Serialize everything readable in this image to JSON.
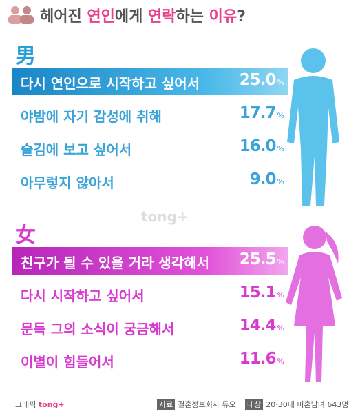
{
  "header": {
    "title_parts": [
      "헤어진 ",
      "연인",
      "에게 ",
      "연락",
      "하는 ",
      "이유",
      "?"
    ]
  },
  "sections": [
    {
      "heading": "男",
      "items": [
        {
          "label": "다시 연인으로 시작하고 싶어서",
          "figure": "25.0",
          "unit": "%"
        },
        {
          "label": "야밤에 자기 감성에 취해",
          "figure": "17.7",
          "unit": "%"
        },
        {
          "label": "술김에 보고 싶어서",
          "figure": "16.0",
          "unit": "%"
        },
        {
          "label": "아무렇지 않아서",
          "figure": "9.0",
          "unit": "%"
        }
      ]
    },
    {
      "heading": "女",
      "items": [
        {
          "label": "친구가 될 수 있을 거라 생각해서",
          "figure": "25.5",
          "unit": "%"
        },
        {
          "label": "다시 시작하고 싶어서",
          "figure": "15.1",
          "unit": "%"
        },
        {
          "label": "문득 그의 소식이 궁금해서",
          "figure": "14.4",
          "unit": "%"
        },
        {
          "label": "이별이 힘들어서",
          "figure": "11.6",
          "unit": "%"
        }
      ]
    }
  ],
  "watermark": "tong+",
  "footer": {
    "credit_label": "그래픽",
    "credit": "tong+",
    "source_label": "자료",
    "source": "결혼정보회사 듀오",
    "target_label": "대상",
    "target": "20·30대 미혼남녀 643명"
  }
}
